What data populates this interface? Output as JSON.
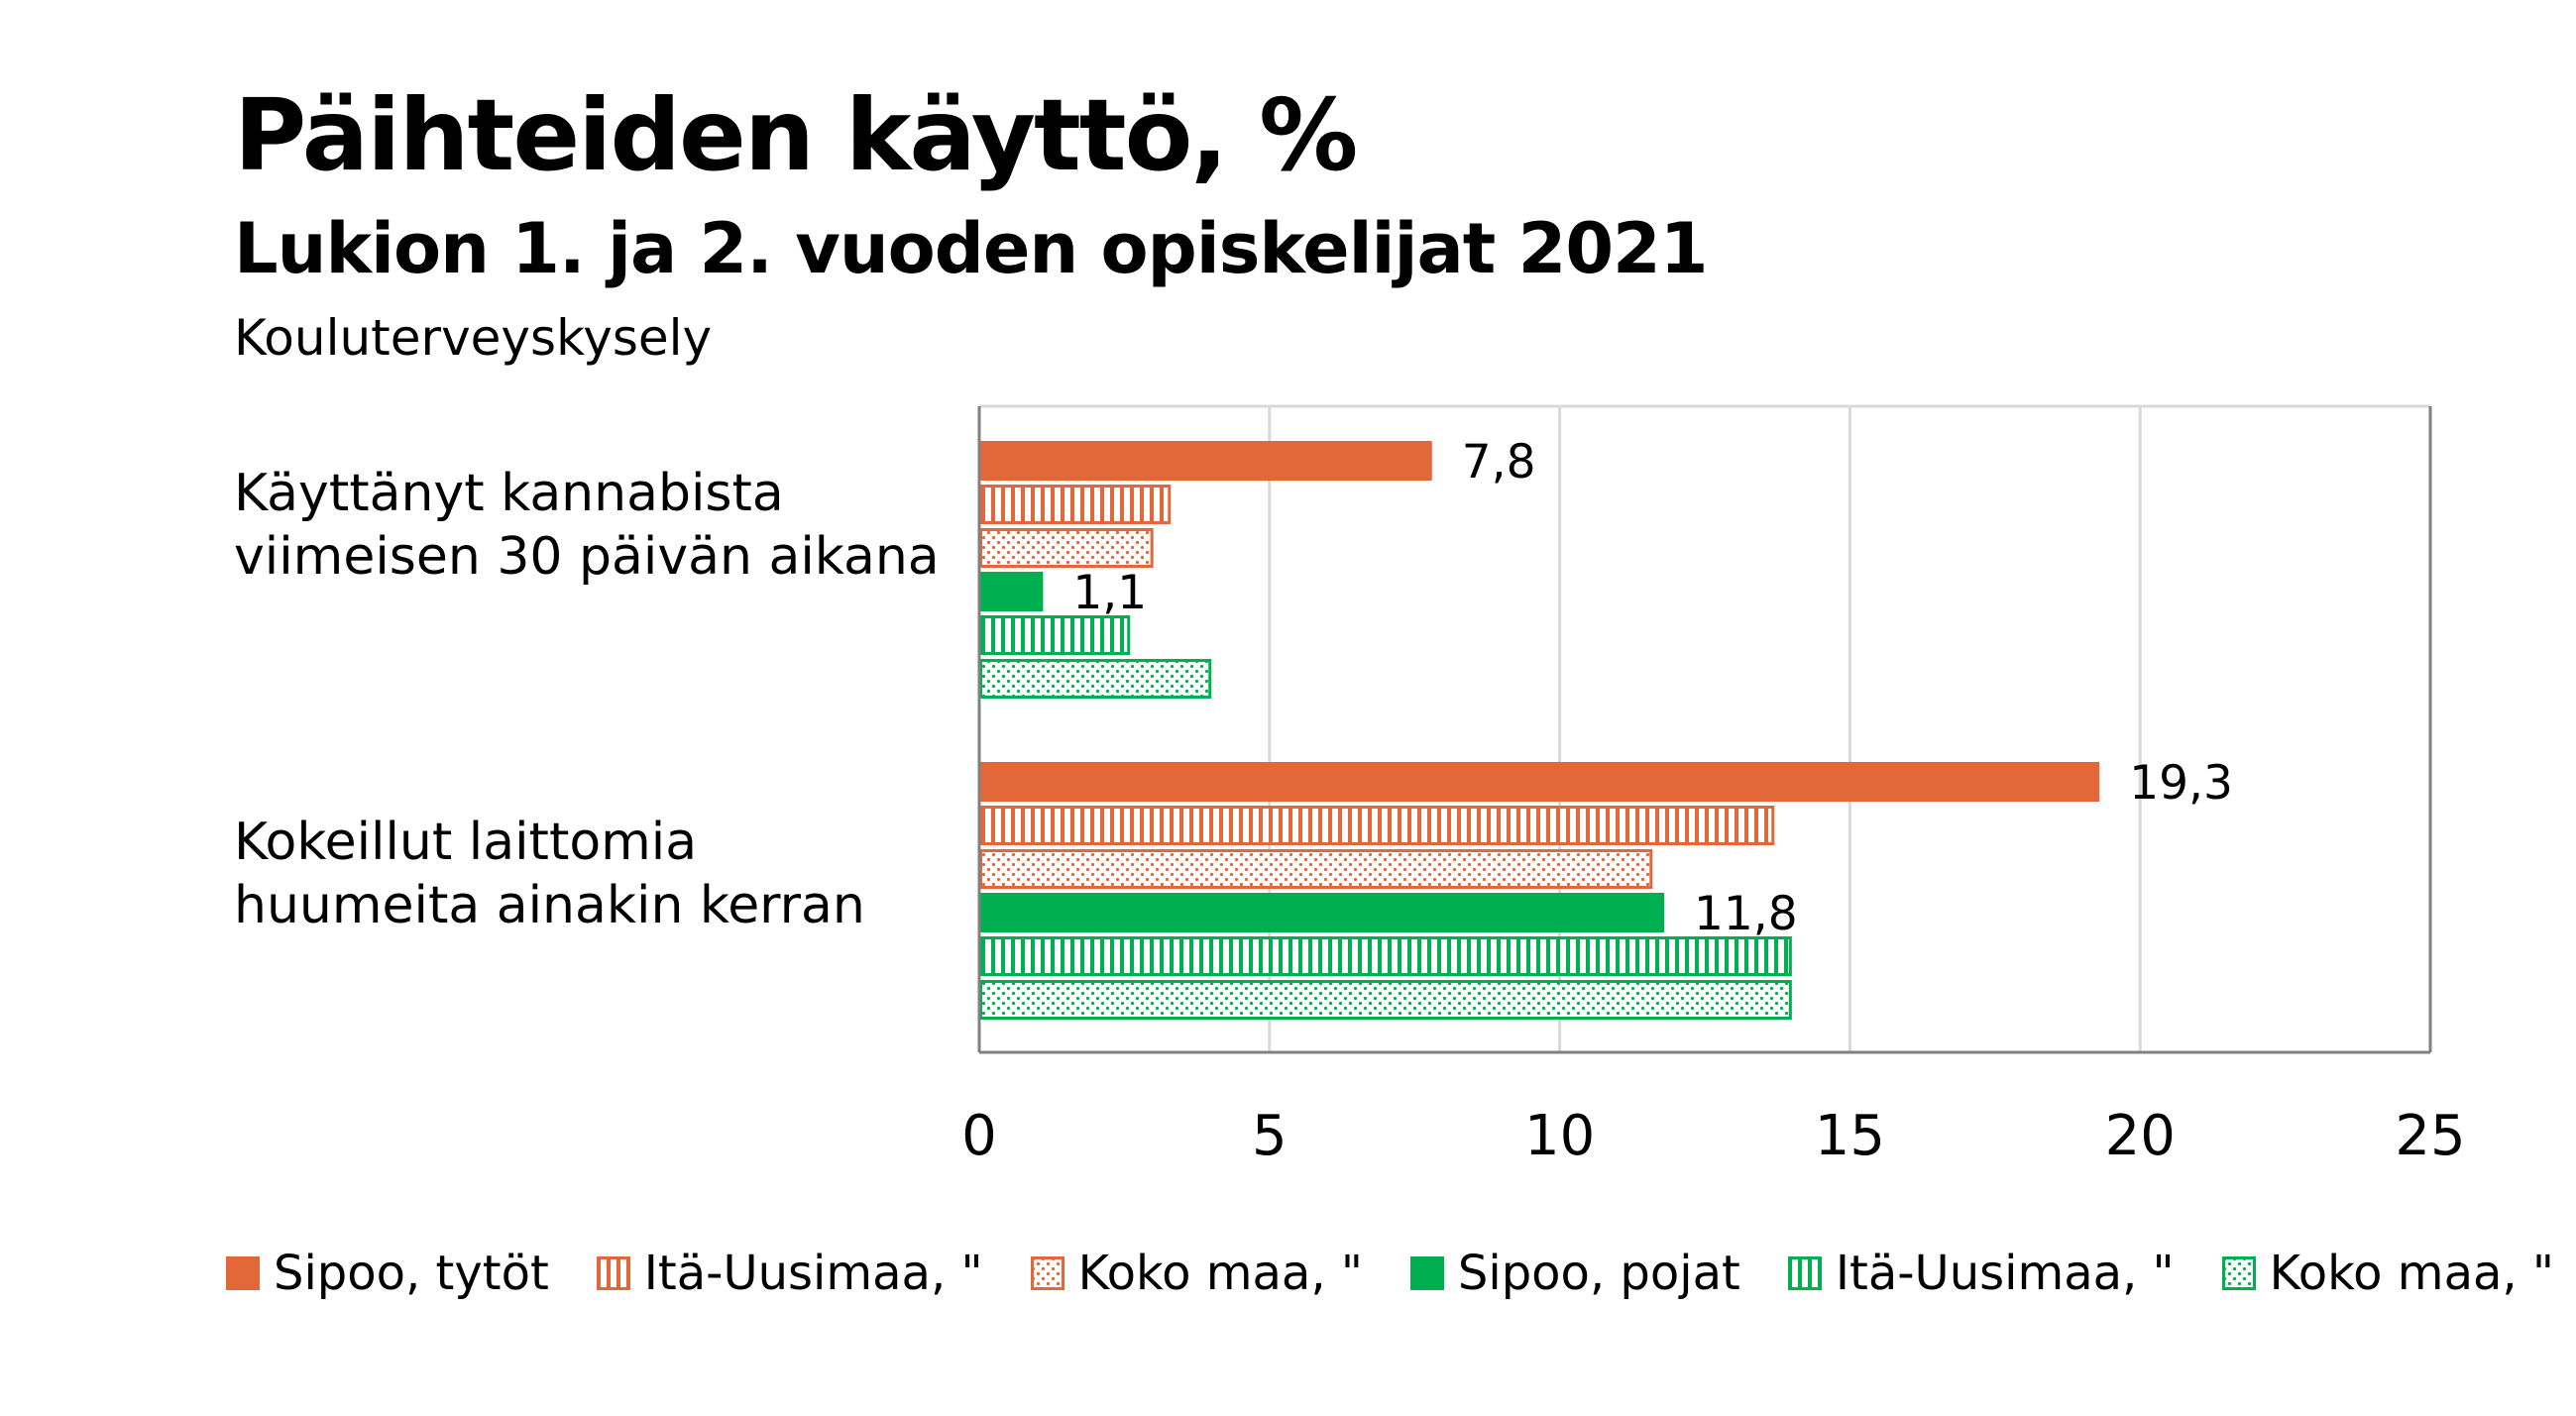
{
  "title": "Päihteiden käyttö, %",
  "subtitle": "Lukion 1. ja 2. vuoden opiskelijat 2021",
  "source": "Kouluterveyskysely",
  "colors": {
    "orange": "#e2683a",
    "green": "#00b050",
    "grid": "#d9d9d9",
    "axis": "#808080"
  },
  "chart_data": {
    "type": "bar",
    "orientation": "horizontal",
    "title": "Päihteiden käyttö, %",
    "subtitle": "Lukion 1. ja 2. vuoden opiskelijat 2021",
    "source": "Kouluterveyskysely",
    "categories": [
      {
        "lines": [
          "Käyttänyt kannabista",
          "viimeisen 30 päivän aikana"
        ]
      },
      {
        "lines": [
          "Kokeillut laittomia",
          "huumeita ainakin kerran"
        ]
      }
    ],
    "series": [
      {
        "name": "Sipoo, tytöt",
        "color": "#e2683a",
        "pattern": "solid",
        "values": [
          7.8,
          19.3
        ],
        "labels": [
          "7,8",
          "19,3"
        ]
      },
      {
        "name": "Itä-Uusimaa, \"",
        "color": "#e2683a",
        "pattern": "vertical-stripes",
        "values": [
          3.3,
          13.7
        ]
      },
      {
        "name": "Koko maa, \"",
        "color": "#e2683a",
        "pattern": "dots",
        "values": [
          3.0,
          11.6
        ]
      },
      {
        "name": "Sipoo, pojat",
        "color": "#00b050",
        "pattern": "solid",
        "values": [
          1.1,
          11.8
        ],
        "labels": [
          "1,1",
          "11,8"
        ]
      },
      {
        "name": "Itä-Uusimaa, \"",
        "color": "#00b050",
        "pattern": "vertical-stripes",
        "values": [
          2.6,
          14.0
        ]
      },
      {
        "name": "Koko maa, \"",
        "color": "#00b050",
        "pattern": "dots",
        "values": [
          4.0,
          14.0
        ]
      }
    ],
    "xlim": [
      0,
      25
    ],
    "xticks": [
      0,
      5,
      10,
      15,
      20,
      25
    ],
    "xtick_labels": [
      "0",
      "5",
      "10",
      "15",
      "20",
      "25"
    ],
    "grid": true,
    "legend_position": "bottom"
  }
}
